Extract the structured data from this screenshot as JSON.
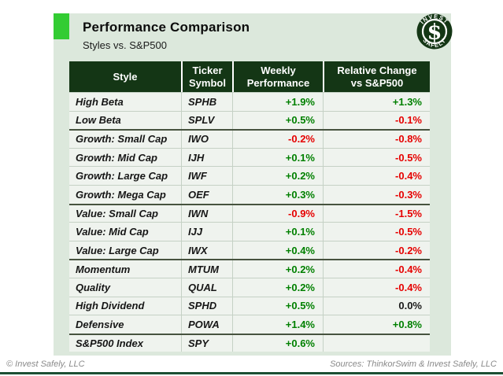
{
  "page": {
    "title": "Performance Comparison",
    "subtitle": "Styles vs. S&P500"
  },
  "logo": {
    "icon": "invest-safely-logo",
    "top_text": "INVEST",
    "bottom_text": "SAFELY",
    "symbol": "$"
  },
  "colors": {
    "accent": "#33cc33",
    "panel_bg": "#dce8dc",
    "row_bg": "#eff3ee",
    "header_bg": "#143615",
    "separator": "#c5d1c5",
    "group_separator": "#47533f",
    "positive": "#008000",
    "negative": "#e60000",
    "neutral": "#1a1a1a",
    "footer_text": "#8a8a8a",
    "bottom_bar": "#1c4f33"
  },
  "table": {
    "headers": [
      "Style",
      "Ticker\nSymbol",
      "Weekly\nPerformance",
      "Relative Change\nvs S&P500"
    ],
    "rows": [
      {
        "style": "High Beta",
        "ticker": "SPHB",
        "weekly": "+1.9%",
        "weekly_color": "positive",
        "relative": "+1.3%",
        "relative_color": "positive",
        "group_start": false
      },
      {
        "style": "Low Beta",
        "ticker": "SPLV",
        "weekly": "+0.5%",
        "weekly_color": "positive",
        "relative": "-0.1%",
        "relative_color": "negative",
        "group_start": false
      },
      {
        "style": "Growth: Small Cap",
        "ticker": "IWO",
        "weekly": "-0.2%",
        "weekly_color": "negative",
        "relative": "-0.8%",
        "relative_color": "negative",
        "group_start": true
      },
      {
        "style": "Growth: Mid Cap",
        "ticker": "IJH",
        "weekly": "+0.1%",
        "weekly_color": "positive",
        "relative": "-0.5%",
        "relative_color": "negative",
        "group_start": false
      },
      {
        "style": "Growth: Large Cap",
        "ticker": "IWF",
        "weekly": "+0.2%",
        "weekly_color": "positive",
        "relative": "-0.4%",
        "relative_color": "negative",
        "group_start": false
      },
      {
        "style": "Growth: Mega Cap",
        "ticker": "OEF",
        "weekly": "+0.3%",
        "weekly_color": "positive",
        "relative": "-0.3%",
        "relative_color": "negative",
        "group_start": false
      },
      {
        "style": "Value: Small Cap",
        "ticker": "IWN",
        "weekly": "-0.9%",
        "weekly_color": "negative",
        "relative": "-1.5%",
        "relative_color": "negative",
        "group_start": true
      },
      {
        "style": "Value: Mid Cap",
        "ticker": "IJJ",
        "weekly": "+0.1%",
        "weekly_color": "positive",
        "relative": "-0.5%",
        "relative_color": "negative",
        "group_start": false
      },
      {
        "style": "Value: Large Cap",
        "ticker": "IWX",
        "weekly": "+0.4%",
        "weekly_color": "positive",
        "relative": "-0.2%",
        "relative_color": "negative",
        "group_start": false
      },
      {
        "style": "Momentum",
        "ticker": "MTUM",
        "weekly": "+0.2%",
        "weekly_color": "positive",
        "relative": "-0.4%",
        "relative_color": "negative",
        "group_start": true
      },
      {
        "style": "Quality",
        "ticker": "QUAL",
        "weekly": "+0.2%",
        "weekly_color": "positive",
        "relative": "-0.4%",
        "relative_color": "negative",
        "group_start": false
      },
      {
        "style": "High Dividend",
        "ticker": "SPHD",
        "weekly": "+0.5%",
        "weekly_color": "positive",
        "relative": "0.0%",
        "relative_color": "neutral",
        "group_start": false
      },
      {
        "style": "Defensive",
        "ticker": "POWA",
        "weekly": "+1.4%",
        "weekly_color": "positive",
        "relative": "+0.8%",
        "relative_color": "positive",
        "group_start": false
      },
      {
        "style": "S&P500 Index",
        "ticker": "SPY",
        "weekly": "+0.6%",
        "weekly_color": "positive",
        "relative": "",
        "relative_color": "neutral",
        "group_start": true
      }
    ]
  },
  "footer": {
    "left": "© Invest Safely, LLC",
    "right": "Sources: ThinkorSwim & Invest Safely, LLC"
  },
  "chart_data": {
    "type": "table",
    "title": "Performance Comparison",
    "subtitle": "Styles vs. S&P500",
    "columns": [
      "Style",
      "Ticker Symbol",
      "Weekly Performance",
      "Relative Change vs S&P500"
    ],
    "rows": [
      [
        "High Beta",
        "SPHB",
        "+1.9%",
        "+1.3%"
      ],
      [
        "Low Beta",
        "SPLV",
        "+0.5%",
        "-0.1%"
      ],
      [
        "Growth: Small Cap",
        "IWO",
        "-0.2%",
        "-0.8%"
      ],
      [
        "Growth: Mid Cap",
        "IJH",
        "+0.1%",
        "-0.5%"
      ],
      [
        "Growth: Large Cap",
        "IWF",
        "+0.2%",
        "-0.4%"
      ],
      [
        "Growth: Mega Cap",
        "OEF",
        "+0.3%",
        "-0.3%"
      ],
      [
        "Value: Small Cap",
        "IWN",
        "-0.9%",
        "-1.5%"
      ],
      [
        "Value: Mid Cap",
        "IJJ",
        "+0.1%",
        "-0.5%"
      ],
      [
        "Value: Large Cap",
        "IWX",
        "+0.4%",
        "-0.2%"
      ],
      [
        "Momentum",
        "MTUM",
        "+0.2%",
        "-0.4%"
      ],
      [
        "Quality",
        "QUAL",
        "+0.2%",
        "-0.4%"
      ],
      [
        "High Dividend",
        "SPHD",
        "+0.5%",
        "0.0%"
      ],
      [
        "Defensive",
        "POWA",
        "+1.4%",
        "+0.8%"
      ],
      [
        "S&P500 Index",
        "SPY",
        "+0.6%",
        ""
      ]
    ]
  }
}
